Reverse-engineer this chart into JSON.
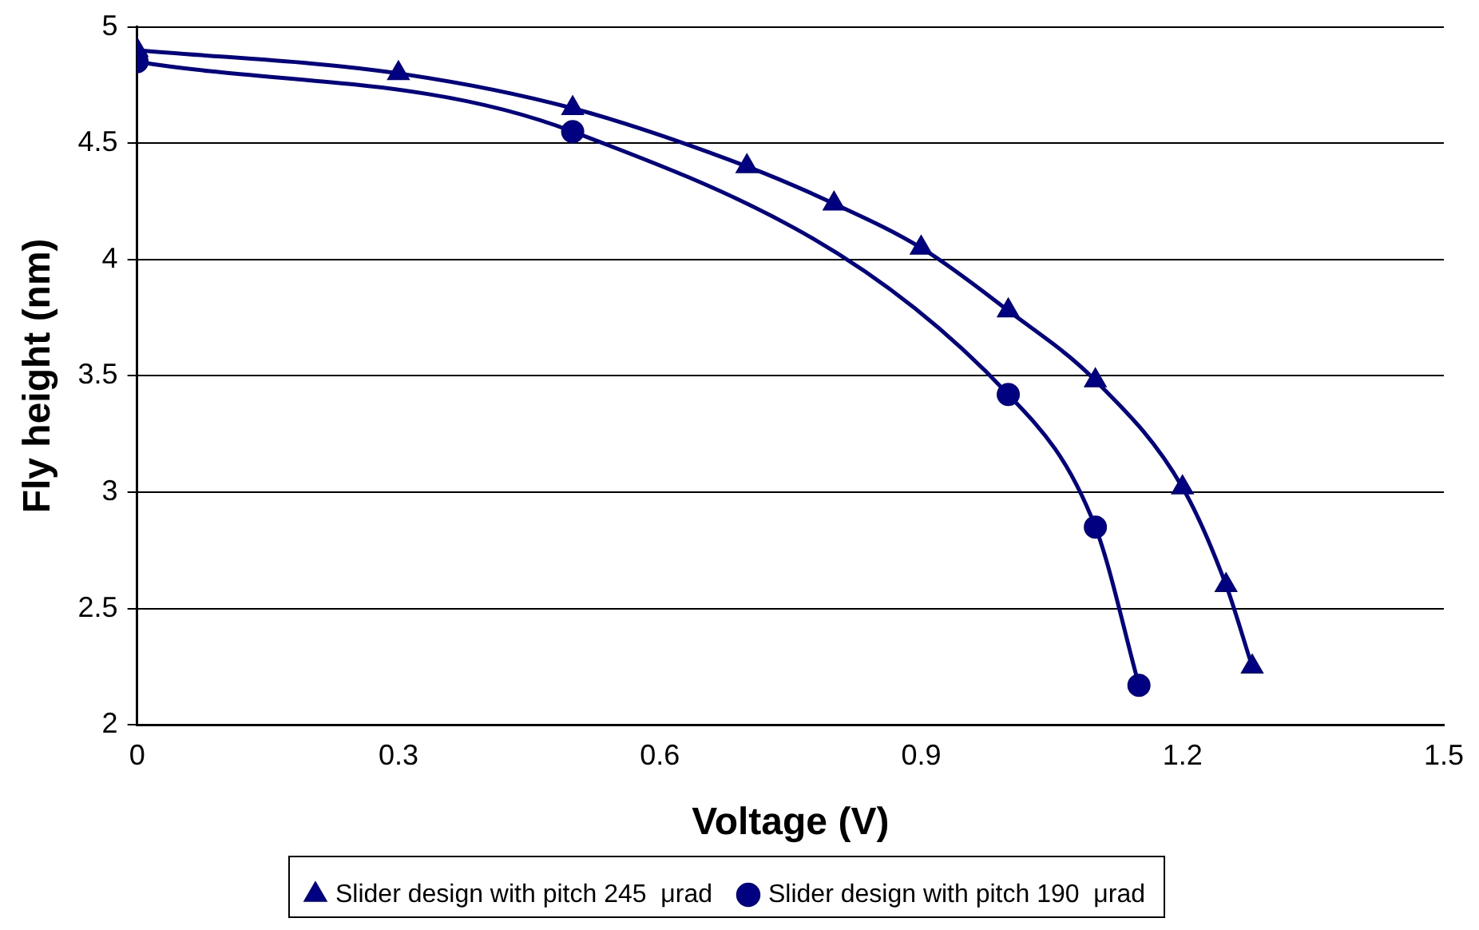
{
  "chart_data": {
    "type": "line",
    "xlabel": "Voltage (V)",
    "ylabel": "Fly height (nm)",
    "xlim": [
      0,
      1.5
    ],
    "xticks": [
      0,
      0.3,
      0.6,
      0.9,
      1.2,
      1.5
    ],
    "ylim": [
      2,
      5
    ],
    "yticks": [
      2,
      2.5,
      3,
      3.5,
      4,
      4.5,
      5
    ],
    "grid": "y",
    "legend": "bottom",
    "line_style": "solid",
    "series": [
      {
        "name": "Slider design with pitch 245  μrad",
        "color": "#000080",
        "marker": "triangle",
        "x": [
          0,
          0.3,
          0.5,
          0.7,
          0.8,
          0.9,
          1.0,
          1.1,
          1.2,
          1.25,
          1.28
        ],
        "values": [
          4.9,
          4.8,
          4.65,
          4.4,
          4.24,
          4.05,
          3.78,
          3.48,
          3.02,
          2.6,
          2.25
        ]
      },
      {
        "name": "Slider design with pitch 190  μrad",
        "color": "#000080",
        "marker": "circle",
        "x": [
          0,
          0.5,
          1.0,
          1.1,
          1.15
        ],
        "values": [
          4.85,
          4.55,
          3.42,
          2.85,
          2.17
        ]
      }
    ]
  }
}
